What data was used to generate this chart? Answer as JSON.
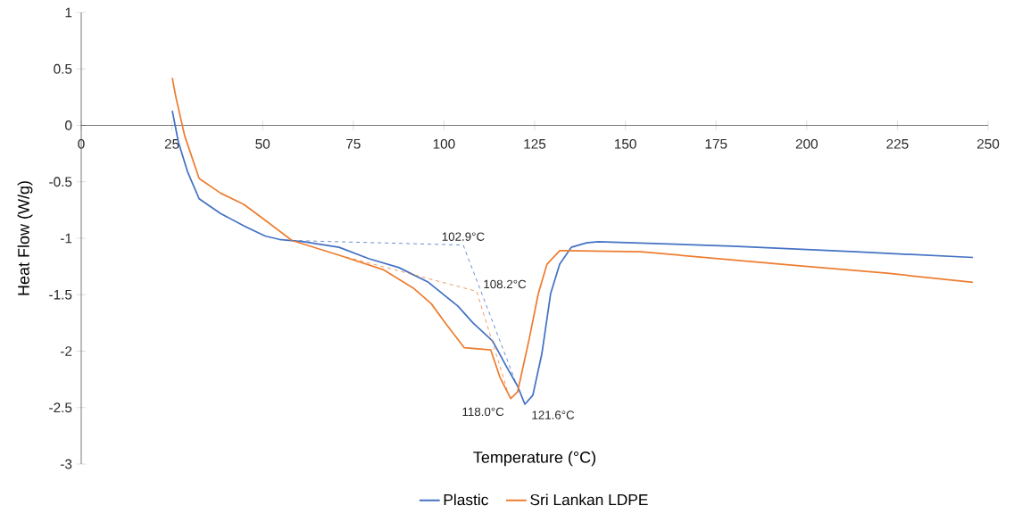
{
  "chart_data": {
    "type": "line",
    "xlabel": "Temperature (°C)",
    "ylabel": "Heat Flow (W/g)",
    "xlim": [
      0,
      250
    ],
    "ylim": [
      -3,
      1
    ],
    "xticks": [
      0,
      25,
      50,
      75,
      100,
      125,
      150,
      175,
      200,
      225,
      250
    ],
    "yticks": [
      -3,
      -2.5,
      -2,
      -1.5,
      -1,
      -0.5,
      0,
      0.5,
      1
    ],
    "grid": false,
    "legend": "bottom",
    "marker": "none",
    "line_style": "solid",
    "series": [
      {
        "name": "Plastic",
        "color": "#4472c4",
        "x": [
          25.1,
          26.8,
          29.3,
          32.5,
          38.4,
          44.8,
          50.7,
          54.6,
          61.3,
          71.1,
          79.2,
          87.6,
          95.7,
          103.8,
          108,
          113.4,
          117.1,
          120.3,
          122.3,
          124.5,
          127,
          129.4,
          131.9,
          135.1,
          139.3,
          142.5,
          179.6,
          213.6,
          245.8
        ],
        "values": [
          0.13,
          -0.15,
          -0.41,
          -0.65,
          -0.78,
          -0.89,
          -0.98,
          -1.01,
          -1.03,
          -1.08,
          -1.18,
          -1.26,
          -1.39,
          -1.6,
          -1.75,
          -1.91,
          -2.13,
          -2.31,
          -2.47,
          -2.39,
          -2.02,
          -1.49,
          -1.23,
          -1.08,
          -1.04,
          -1.03,
          -1.07,
          -1.12,
          -1.17
        ]
      },
      {
        "name": "Sri Lankan LDPE",
        "color": "#ed7d31",
        "x": [
          25.1,
          26.1,
          28.5,
          32.5,
          38.4,
          44.8,
          50.7,
          58.1,
          71.1,
          83.4,
          91.5,
          96.5,
          100.6,
          105.6,
          112.9,
          115.4,
          118.4,
          120.3,
          123.5,
          126,
          128.4,
          131.9,
          133.1,
          154.3,
          196.6,
          222.2,
          245.8
        ],
        "values": [
          0.42,
          0.25,
          -0.09,
          -0.47,
          -0.6,
          -0.7,
          -0.84,
          -1.02,
          -1.15,
          -1.28,
          -1.44,
          -1.58,
          -1.76,
          -1.97,
          -1.99,
          -2.23,
          -2.42,
          -2.36,
          -1.89,
          -1.49,
          -1.23,
          -1.11,
          -1.11,
          -1.12,
          -1.24,
          -1.31,
          -1.39
        ]
      },
      {
        "color": "#4472c4",
        "line_style": "dashed",
        "x": [
          58.1,
          105.3,
          119.6
        ],
        "values": [
          -1.02,
          -1.06,
          -2.26
        ]
      },
      {
        "color": "#ed7d31",
        "line_style": "dashed",
        "x": [
          71.1,
          109,
          117.4
        ],
        "values": [
          -1.15,
          -1.47,
          -2.34
        ]
      }
    ],
    "annotations": [
      "102.9°C",
      "108.2°C",
      "118.0°C",
      "121.6°C"
    ]
  }
}
